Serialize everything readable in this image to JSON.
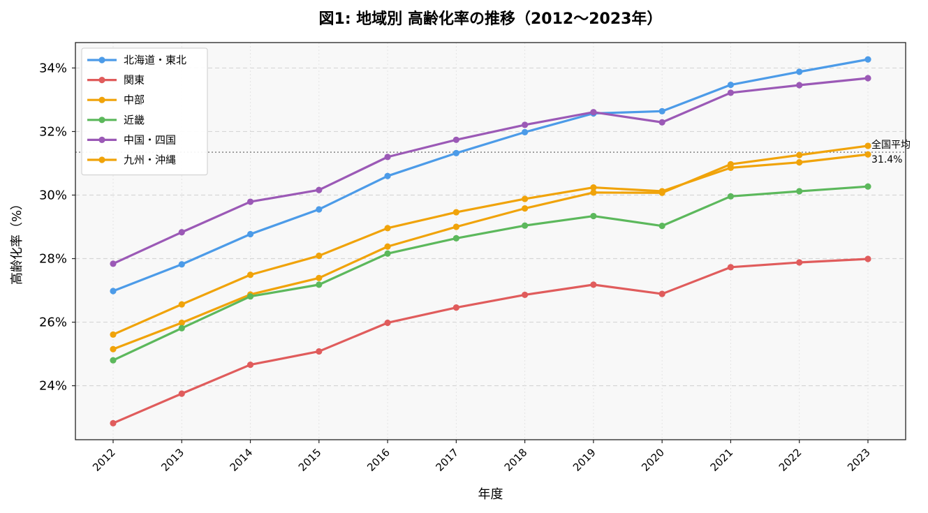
{
  "chart_data": {
    "type": "line",
    "title": "図1: 地域別 高齢化率の推移（2012〜2023年）",
    "xlabel": "年度",
    "ylabel": "高齢化率（%）",
    "x": [
      "2012",
      "2013",
      "2014",
      "2015",
      "2016",
      "2017",
      "2018",
      "2019",
      "2020",
      "2021",
      "2022",
      "2023"
    ],
    "ylim": [
      22.3,
      34.8
    ],
    "yticks": [
      24,
      26,
      28,
      30,
      32,
      34
    ],
    "ytick_labels": [
      "24%",
      "26%",
      "28%",
      "30%",
      "32%",
      "34%"
    ],
    "grid": true,
    "legend_position": "upper-left",
    "series": [
      {
        "name": "北海道・東北",
        "color": "#4C9BE8",
        "values": [
          26.98,
          27.82,
          28.77,
          29.55,
          30.6,
          31.32,
          31.98,
          32.57,
          32.64,
          33.47,
          33.88,
          34.27
        ]
      },
      {
        "name": "関東",
        "color": "#E05C5C",
        "values": [
          22.82,
          23.75,
          24.66,
          25.08,
          25.98,
          26.46,
          26.86,
          27.18,
          26.89,
          27.73,
          27.88,
          27.99
        ]
      },
      {
        "name": "中部",
        "color": "#F0A30A",
        "values": [
          25.15,
          25.98,
          26.87,
          27.39,
          28.38,
          29.0,
          29.58,
          30.08,
          30.07,
          30.97,
          31.26,
          31.55
        ]
      },
      {
        "name": "近畿",
        "color": "#5CB85C",
        "values": [
          24.8,
          25.81,
          26.81,
          27.18,
          28.16,
          28.64,
          29.04,
          29.34,
          29.03,
          29.96,
          30.12,
          30.27
        ]
      },
      {
        "name": "中国・四国",
        "color": "#9B59B6",
        "values": [
          27.84,
          28.83,
          29.79,
          30.16,
          31.2,
          31.74,
          32.21,
          32.61,
          32.29,
          33.22,
          33.46,
          33.68
        ]
      },
      {
        "name": "九州・沖縄",
        "color": "#F0A30A",
        "values": [
          25.61,
          26.56,
          27.49,
          28.09,
          28.96,
          29.46,
          29.88,
          30.24,
          30.12,
          30.86,
          31.03,
          31.28
        ]
      }
    ],
    "reference_line": {
      "value": 31.35,
      "label": "全国平均",
      "value_label": "31.4%",
      "color": "#777777"
    }
  }
}
